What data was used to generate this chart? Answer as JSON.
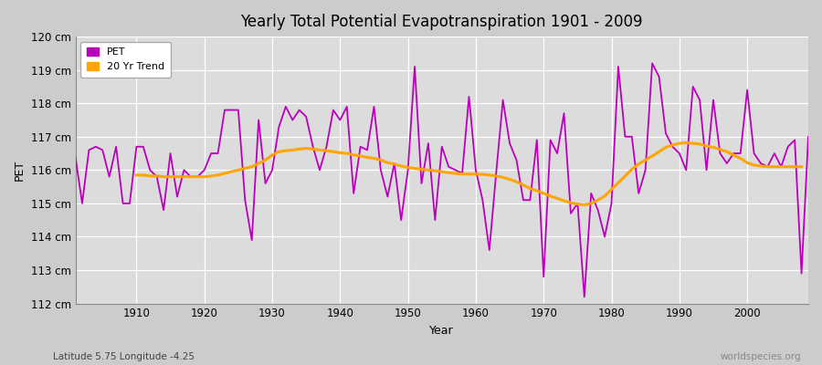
{
  "title": "Yearly Total Potential Evapotranspiration 1901 - 2009",
  "xlabel": "Year",
  "ylabel": "PET",
  "subtitle": "Latitude 5.75 Longitude -4.25",
  "watermark": "worldspecies.org",
  "pet_color": "#BB00BB",
  "trend_color": "#FFA500",
  "fig_bg_color": "#D8D8D8",
  "plot_bg_color": "#E8E8E8",
  "ylim": [
    112,
    120
  ],
  "ytick_labels": [
    "112 cm",
    "113 cm",
    "114 cm",
    "115 cm",
    "116 cm",
    "117 cm",
    "118 cm",
    "119 cm",
    "120 cm"
  ],
  "ytick_values": [
    112,
    113,
    114,
    115,
    116,
    117,
    118,
    119,
    120
  ],
  "years": [
    1901,
    1902,
    1903,
    1904,
    1905,
    1906,
    1907,
    1908,
    1909,
    1910,
    1911,
    1912,
    1913,
    1914,
    1915,
    1916,
    1917,
    1918,
    1919,
    1920,
    1921,
    1922,
    1923,
    1924,
    1925,
    1926,
    1927,
    1928,
    1929,
    1930,
    1931,
    1932,
    1933,
    1934,
    1935,
    1936,
    1937,
    1938,
    1939,
    1940,
    1941,
    1942,
    1943,
    1944,
    1945,
    1946,
    1947,
    1948,
    1949,
    1950,
    1951,
    1952,
    1953,
    1954,
    1955,
    1956,
    1957,
    1958,
    1959,
    1960,
    1961,
    1962,
    1963,
    1964,
    1965,
    1966,
    1967,
    1968,
    1969,
    1970,
    1971,
    1972,
    1973,
    1974,
    1975,
    1976,
    1977,
    1978,
    1979,
    1980,
    1981,
    1982,
    1983,
    1984,
    1985,
    1986,
    1987,
    1988,
    1989,
    1990,
    1991,
    1992,
    1993,
    1994,
    1995,
    1996,
    1997,
    1998,
    1999,
    2000,
    2001,
    2002,
    2003,
    2004,
    2005,
    2006,
    2007,
    2008,
    2009
  ],
  "pet_values": [
    116.4,
    115.0,
    116.6,
    116.7,
    116.6,
    115.8,
    116.7,
    115.0,
    115.0,
    116.7,
    116.7,
    116.0,
    115.8,
    114.8,
    116.5,
    115.2,
    116.0,
    115.8,
    115.8,
    116.0,
    116.5,
    116.5,
    117.8,
    117.8,
    117.8,
    115.1,
    113.9,
    117.5,
    115.6,
    116.0,
    117.3,
    117.9,
    117.5,
    117.8,
    117.6,
    116.7,
    116.0,
    116.7,
    117.8,
    117.5,
    117.9,
    115.3,
    116.7,
    116.6,
    117.9,
    116.0,
    115.2,
    116.2,
    114.5,
    116.0,
    119.1,
    115.6,
    116.8,
    114.5,
    116.7,
    116.1,
    116.0,
    115.9,
    118.2,
    116.0,
    115.1,
    113.6,
    115.9,
    118.1,
    116.8,
    116.3,
    115.1,
    115.1,
    116.9,
    112.8,
    116.9,
    116.5,
    117.7,
    114.7,
    115.0,
    112.2,
    115.3,
    114.8,
    114.0,
    115.0,
    119.1,
    117.0,
    117.0,
    115.3,
    116.0,
    119.2,
    118.8,
    117.1,
    116.7,
    116.5,
    116.0,
    118.5,
    118.1,
    116.0,
    118.1,
    116.5,
    116.2,
    116.5,
    116.5,
    118.4,
    116.5,
    116.2,
    116.1,
    116.5,
    116.1,
    116.7,
    116.9,
    112.9,
    117.0
  ],
  "trend_values": [
    null,
    null,
    null,
    null,
    null,
    null,
    null,
    null,
    null,
    115.85,
    115.85,
    115.82,
    115.82,
    115.8,
    115.8,
    115.8,
    115.8,
    115.8,
    115.8,
    115.8,
    115.82,
    115.85,
    115.9,
    115.95,
    116.0,
    116.05,
    116.1,
    116.2,
    116.3,
    116.45,
    116.55,
    116.58,
    116.6,
    116.63,
    116.65,
    116.63,
    116.6,
    116.58,
    116.55,
    116.52,
    116.5,
    116.45,
    116.42,
    116.38,
    116.35,
    116.3,
    116.22,
    116.18,
    116.12,
    116.08,
    116.05,
    116.02,
    116.0,
    115.98,
    115.95,
    115.92,
    115.9,
    115.88,
    115.88,
    115.88,
    115.87,
    115.85,
    115.82,
    115.78,
    115.72,
    115.65,
    115.55,
    115.45,
    115.38,
    115.3,
    115.22,
    115.15,
    115.08,
    115.02,
    114.98,
    114.95,
    115.0,
    115.1,
    115.22,
    115.42,
    115.62,
    115.82,
    116.02,
    116.18,
    116.3,
    116.42,
    116.55,
    116.68,
    116.75,
    116.8,
    116.82,
    116.8,
    116.78,
    116.72,
    116.68,
    116.62,
    116.55,
    116.45,
    116.35,
    116.22,
    116.15,
    116.12,
    116.1,
    116.1,
    116.1,
    116.1,
    116.1,
    116.1,
    null
  ]
}
